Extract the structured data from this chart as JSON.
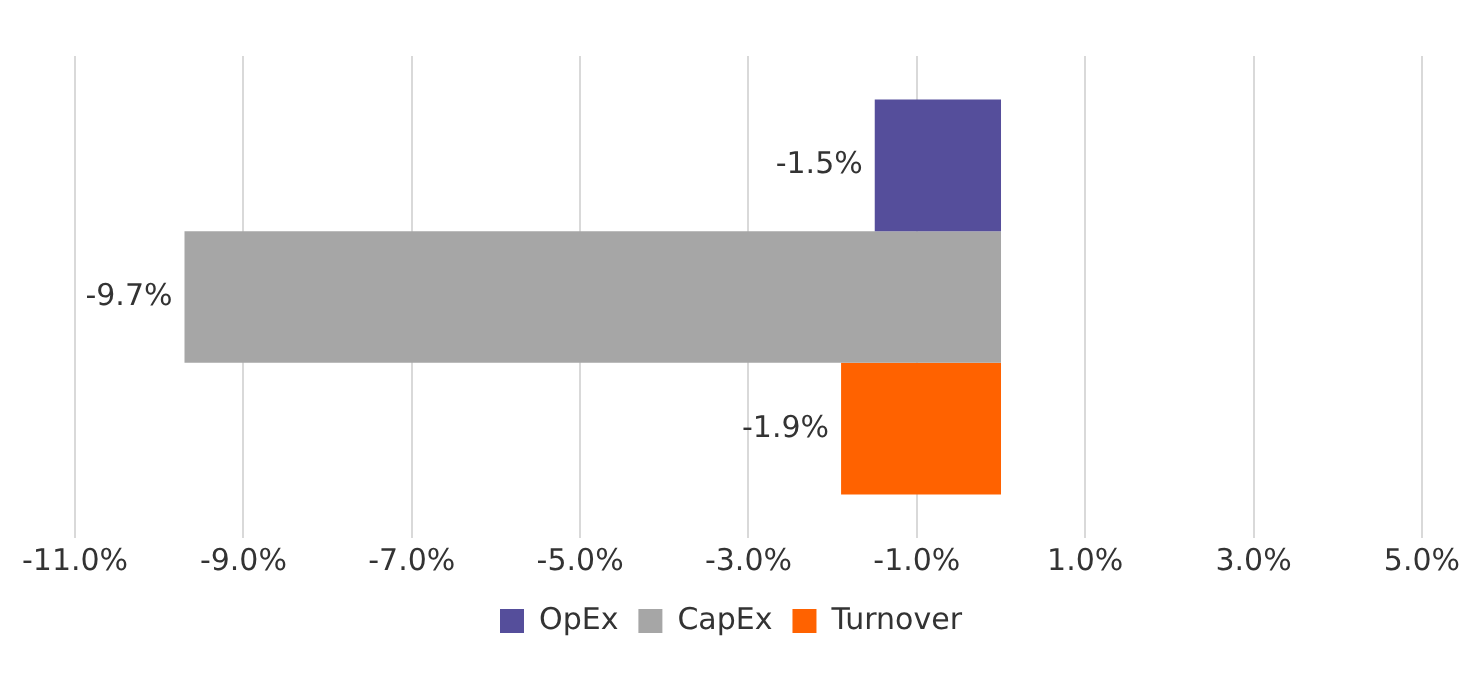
{
  "chart_data": {
    "type": "bar",
    "orientation": "horizontal",
    "categories": [
      null
    ],
    "series": [
      {
        "name": "OpEx",
        "color": "#554e9b",
        "values": [
          -1.5
        ],
        "value_labels": [
          "-1.5%"
        ]
      },
      {
        "name": "CapEx",
        "color": "#a6a6a6",
        "values": [
          -9.7
        ],
        "value_labels": [
          "-9.7%"
        ]
      },
      {
        "name": "Turnover",
        "color": "#ff6200",
        "values": [
          -1.9
        ],
        "value_labels": [
          "-1.9%"
        ]
      }
    ],
    "xlim": [
      -11,
      5
    ],
    "xticks": [
      {
        "value": -11,
        "label": "-11.0%"
      },
      {
        "value": -9,
        "label": "-9.0%"
      },
      {
        "value": -7,
        "label": "-7.0%"
      },
      {
        "value": -5,
        "label": "-5.0%"
      },
      {
        "value": -3,
        "label": "-3.0%"
      },
      {
        "value": -1,
        "label": "-1.0%"
      },
      {
        "value": 1,
        "label": "1.0%"
      },
      {
        "value": 3,
        "label": "3.0%"
      },
      {
        "value": 5,
        "label": "5.0%"
      }
    ],
    "grid": "x",
    "legend": "bottom"
  }
}
